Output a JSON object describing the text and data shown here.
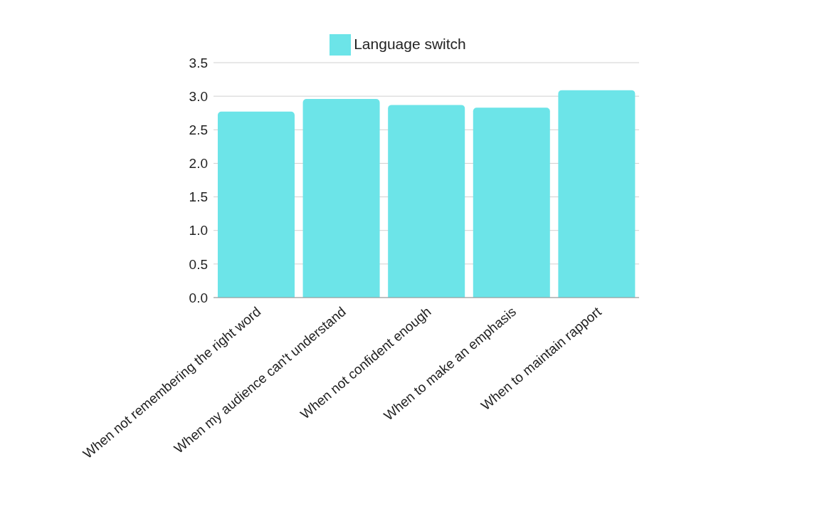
{
  "chart_data": {
    "type": "bar",
    "categories": [
      "When not remembering the right word",
      "When my audience can't understand",
      "When not confident enough",
      "When to make an emphasis",
      "When to maintain rapport"
    ],
    "series": [
      {
        "name": "Language switch",
        "color": "#6ce4e8",
        "values": [
          2.77,
          2.96,
          2.87,
          2.83,
          3.09
        ]
      }
    ],
    "ylim": [
      0,
      3.5
    ],
    "yticks": [
      {
        "value": 0,
        "label": "0.0"
      },
      0.5,
      {
        "value": 1,
        "label": "1.0"
      },
      1.5,
      {
        "value": 2,
        "label": "2.0"
      },
      2.5,
      {
        "value": 3,
        "label": "3.0"
      },
      3.5
    ],
    "grid": "y",
    "legend": "top"
  }
}
